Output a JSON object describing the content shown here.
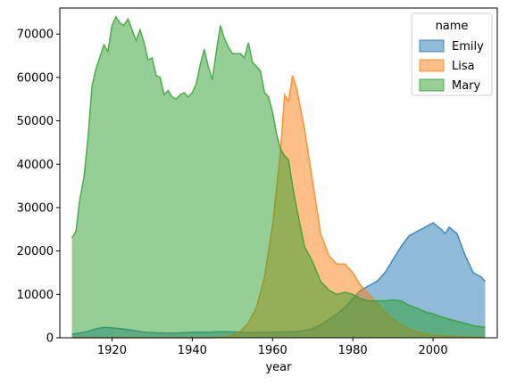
{
  "chart_data": {
    "type": "area",
    "title": "",
    "xlabel": "year",
    "ylabel": "",
    "xlim": [
      1907,
      2016
    ],
    "ylim": [
      0,
      76000
    ],
    "x_ticks": [
      1920,
      1940,
      1960,
      1980,
      2000
    ],
    "y_ticks": [
      0,
      10000,
      20000,
      30000,
      40000,
      50000,
      60000,
      70000
    ],
    "grid": false,
    "legend": {
      "title": "name",
      "placement": "top-right"
    },
    "series": [
      {
        "name": "Emily",
        "color": "#1f77b4",
        "x": [
          1910,
          1912,
          1914,
          1916,
          1918,
          1920,
          1922,
          1924,
          1926,
          1928,
          1930,
          1932,
          1934,
          1936,
          1938,
          1940,
          1942,
          1944,
          1946,
          1948,
          1950,
          1952,
          1954,
          1956,
          1958,
          1960,
          1962,
          1964,
          1966,
          1968,
          1970,
          1972,
          1974,
          1976,
          1978,
          1980,
          1982,
          1984,
          1986,
          1988,
          1990,
          1992,
          1994,
          1996,
          1998,
          2000,
          2002,
          2003,
          2004,
          2006,
          2008,
          2010,
          2012,
          2013
        ],
        "y": [
          800,
          1100,
          1500,
          2100,
          2400,
          2300,
          2100,
          1900,
          1600,
          1300,
          1200,
          1100,
          1050,
          1100,
          1200,
          1250,
          1300,
          1250,
          1350,
          1400,
          1350,
          1300,
          1200,
          1250,
          1300,
          1300,
          1350,
          1350,
          1450,
          1700,
          2100,
          3000,
          4200,
          5500,
          7000,
          9000,
          11000,
          12000,
          13000,
          15000,
          18000,
          21000,
          23500,
          24500,
          25500,
          26500,
          25000,
          24000,
          25500,
          24000,
          19000,
          15000,
          14000,
          13000
        ]
      },
      {
        "name": "Lisa",
        "color": "#ff7f0e",
        "x": [
          1910,
          1930,
          1945,
          1948,
          1950,
          1952,
          1954,
          1956,
          1958,
          1960,
          1962,
          1963,
          1964,
          1965,
          1966,
          1968,
          1970,
          1972,
          1974,
          1976,
          1978,
          1980,
          1982,
          1984,
          1986,
          1988,
          1990,
          1992,
          1994,
          1996,
          1998,
          2000,
          2005,
          2013
        ],
        "y": [
          0,
          0,
          0,
          200,
          600,
          1500,
          3500,
          7000,
          14000,
          26000,
          43000,
          56000,
          54500,
          60500,
          57500,
          48000,
          36000,
          24000,
          19000,
          17000,
          17000,
          15000,
          12000,
          10000,
          8000,
          6000,
          4200,
          3000,
          2000,
          1400,
          900,
          600,
          300,
          100
        ]
      },
      {
        "name": "Mary",
        "color": "#2ca02c",
        "x": [
          1910,
          1911,
          1912,
          1913,
          1914,
          1915,
          1916,
          1918,
          1919,
          1920,
          1921,
          1922,
          1923,
          1924,
          1925,
          1926,
          1927,
          1928,
          1929,
          1930,
          1931,
          1932,
          1933,
          1934,
          1935,
          1936,
          1937,
          1938,
          1939,
          1940,
          1941,
          1942,
          1943,
          1944,
          1945,
          1946,
          1947,
          1948,
          1949,
          1950,
          1951,
          1952,
          1953,
          1954,
          1955,
          1956,
          1957,
          1958,
          1959,
          1960,
          1961,
          1962,
          1963,
          1964,
          1965,
          1966,
          1968,
          1970,
          1972,
          1974,
          1976,
          1978,
          1980,
          1982,
          1984,
          1986,
          1988,
          1990,
          1992,
          1994,
          1996,
          1998,
          2000,
          2002,
          2004,
          2006,
          2008,
          2010,
          2012,
          2013
        ],
        "y": [
          23000,
          24500,
          32000,
          37000,
          46000,
          58000,
          62000,
          67500,
          66000,
          72000,
          74000,
          72500,
          72000,
          73500,
          71000,
          68500,
          71000,
          68000,
          64000,
          64500,
          60500,
          60000,
          56000,
          57000,
          55500,
          55000,
          56000,
          56500,
          55500,
          56500,
          58500,
          63000,
          66500,
          62500,
          59500,
          66000,
          72000,
          69000,
          67000,
          65500,
          65500,
          65500,
          64500,
          68000,
          63500,
          62500,
          61500,
          56500,
          55500,
          52000,
          47000,
          43500,
          42000,
          41000,
          35000,
          30000,
          21000,
          17500,
          13000,
          11000,
          10000,
          10500,
          10000,
          9000,
          8500,
          8500,
          8500,
          8700,
          8500,
          7500,
          6800,
          6000,
          5500,
          4800,
          4300,
          3800,
          3300,
          2800,
          2500,
          2400
        ]
      }
    ]
  }
}
